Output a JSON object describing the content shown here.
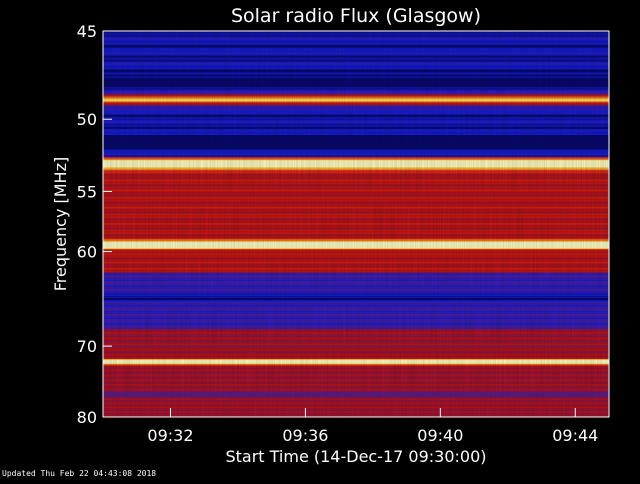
{
  "chart_data": {
    "type": "heatmap",
    "title": "Solar radio Flux (Glasgow)",
    "xlabel": "Start Time (14-Dec-17 09:30:00)",
    "ylabel": "Frequency [MHz]",
    "x_ticks": [
      "09:32",
      "09:36",
      "09:40",
      "09:44"
    ],
    "x_tick_minutes": [
      2,
      6,
      10,
      14
    ],
    "xlim_minutes": [
      0,
      15
    ],
    "y_ticks": [
      45,
      50,
      55,
      60,
      70,
      80
    ],
    "ylim": [
      45,
      80
    ],
    "y_scale": "reciprocal",
    "colormap": "blue-red-yellow",
    "bright_bands_mhz": [
      48.8,
      53.0,
      59.4,
      72.0
    ],
    "dark_bands_mhz": [
      47.8,
      51.5,
      64.5,
      76.5
    ],
    "colors": {
      "low": "#141cc8",
      "mid": "#b81010",
      "high": "#ffff80",
      "frame": "#ffffff"
    }
  },
  "footer": "Updated Thu Feb 22 04:43:08 2018"
}
